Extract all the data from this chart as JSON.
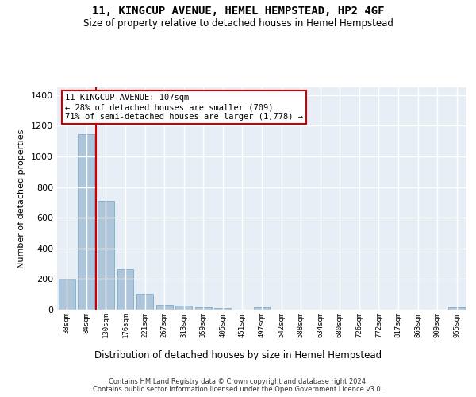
{
  "title": "11, KINGCUP AVENUE, HEMEL HEMPSTEAD, HP2 4GF",
  "subtitle": "Size of property relative to detached houses in Hemel Hempstead",
  "xlabel": "Distribution of detached houses by size in Hemel Hempstead",
  "ylabel": "Number of detached properties",
  "bar_labels": [
    "38sqm",
    "84sqm",
    "130sqm",
    "176sqm",
    "221sqm",
    "267sqm",
    "313sqm",
    "359sqm",
    "405sqm",
    "451sqm",
    "497sqm",
    "542sqm",
    "588sqm",
    "634sqm",
    "680sqm",
    "726sqm",
    "772sqm",
    "817sqm",
    "863sqm",
    "909sqm",
    "955sqm"
  ],
  "bar_values": [
    196,
    1145,
    710,
    265,
    105,
    33,
    27,
    14,
    12,
    0,
    14,
    0,
    0,
    0,
    0,
    0,
    0,
    0,
    0,
    0,
    14
  ],
  "bar_color": "#aec6dc",
  "bar_edge_color": "#7aabcc",
  "background_color": "#e8eef5",
  "grid_color": "#ffffff",
  "property_label": "11 KINGCUP AVENUE: 107sqm",
  "pct_smaller": 28,
  "pct_smaller_count": 709,
  "pct_larger": 71,
  "pct_larger_count": 1778,
  "vline_x": 1.5,
  "annotation_box_color": "#ffffff",
  "annotation_box_edge_color": "#cc0000",
  "ylim": [
    0,
    1450
  ],
  "yticks": [
    0,
    200,
    400,
    600,
    800,
    1000,
    1200,
    1400
  ],
  "footer_line1": "Contains HM Land Registry data © Crown copyright and database right 2024.",
  "footer_line2": "Contains public sector information licensed under the Open Government Licence v3.0."
}
